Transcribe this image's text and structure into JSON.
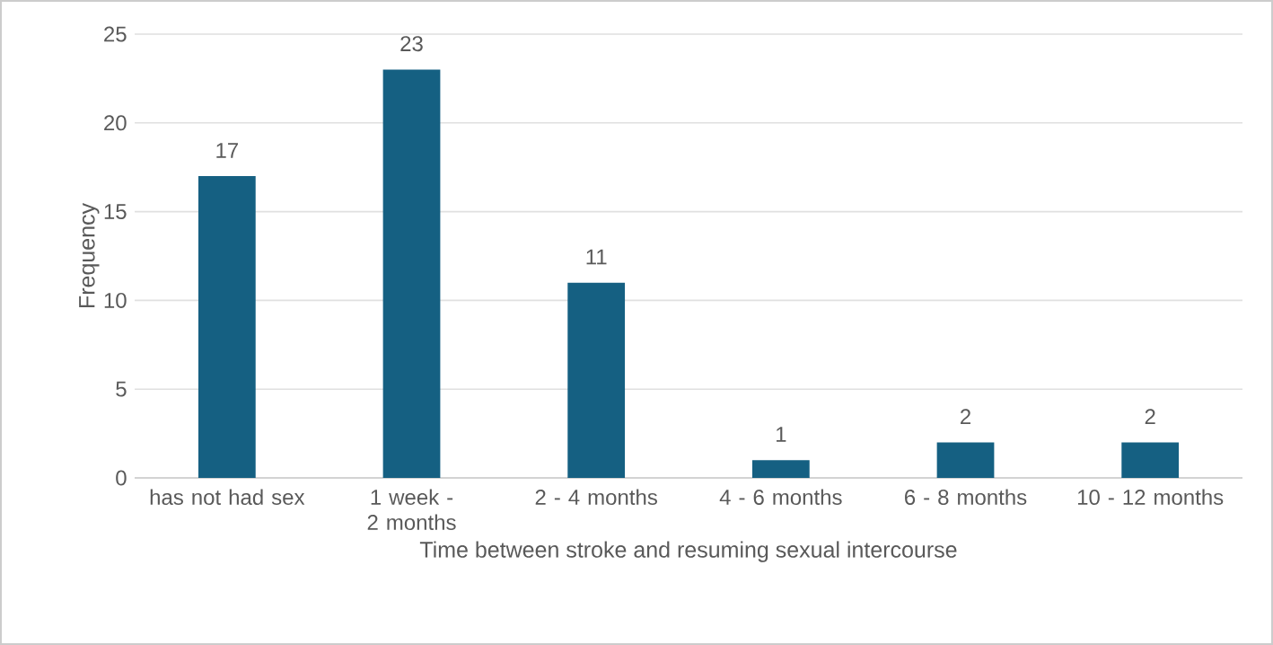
{
  "chart_data": {
    "type": "bar",
    "xlabel": "Time between stroke and resuming sexual intercourse",
    "ylabel": "Frequency",
    "categories": [
      "has not had sex",
      "1 week - 2 months",
      "2 - 4 months",
      "4 - 6 months",
      "6 - 8 months",
      "10 - 12 months"
    ],
    "values": [
      17,
      23,
      11,
      1,
      2,
      2
    ],
    "color": "#156082",
    "ylim": [
      0,
      25
    ],
    "yticks": [
      0,
      5,
      10,
      15,
      20,
      25
    ],
    "grid": "y",
    "data_labels": true
  }
}
